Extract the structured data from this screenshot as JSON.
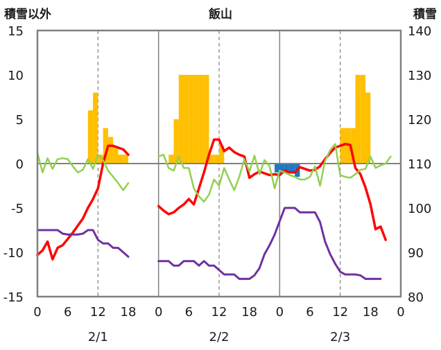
{
  "chart_data": {
    "type": "bar+line",
    "title": "飯山",
    "y_left_label": "積雪以外",
    "y_right_label": "積雪",
    "y_left_ticks": [
      "15",
      "10",
      "5",
      "0",
      "-5",
      "-10",
      "-15"
    ],
    "y_right_ticks": [
      "140",
      "130",
      "120",
      "110",
      "100",
      "90",
      "80"
    ],
    "ylim_left": [
      -15,
      15
    ],
    "ylim_right": [
      80,
      140
    ],
    "x_tick_labels": [
      "0",
      "6",
      "12",
      "18",
      "0",
      "6",
      "12",
      "18",
      "0",
      "6",
      "12",
      "18",
      "0"
    ],
    "day_labels": [
      "2/1",
      "2/2",
      "2/3"
    ],
    "x_unit": "hours from 2/1 00:00",
    "xlim": [
      0,
      72
    ],
    "grid": "dashed vertical at 12:00 each day; solid day separators",
    "colors": {
      "snowfall_positive": "#ffc000",
      "snowfall_negative": "#1f77c4",
      "red": "#ff0000",
      "green": "#92d050",
      "purple": "#7030a0",
      "frame": "#808080"
    },
    "bars": {
      "name": "",
      "axis": "left",
      "points": [
        {
          "x": 10.5,
          "y": 6
        },
        {
          "x": 11.5,
          "y": 8
        },
        {
          "x": 12.5,
          "y": 1
        },
        {
          "x": 13.5,
          "y": 4
        },
        {
          "x": 14.5,
          "y": 3
        },
        {
          "x": 15.5,
          "y": 2
        },
        {
          "x": 16.5,
          "y": 1
        },
        {
          "x": 17.5,
          "y": 1
        },
        {
          "x": 26.5,
          "y": 1
        },
        {
          "x": 27.5,
          "y": 5
        },
        {
          "x": 28.5,
          "y": 10
        },
        {
          "x": 29.5,
          "y": 10
        },
        {
          "x": 30.5,
          "y": 10
        },
        {
          "x": 31.5,
          "y": 10
        },
        {
          "x": 32.5,
          "y": 10
        },
        {
          "x": 33.5,
          "y": 10
        },
        {
          "x": 34.5,
          "y": 1
        },
        {
          "x": 35.5,
          "y": 1
        },
        {
          "x": 36.5,
          "y": 2
        },
        {
          "x": 47.5,
          "y": -1
        },
        {
          "x": 48.5,
          "y": -1
        },
        {
          "x": 49.5,
          "y": -1
        },
        {
          "x": 50.5,
          "y": -1
        },
        {
          "x": 51.5,
          "y": -1.5
        },
        {
          "x": 60.5,
          "y": 4
        },
        {
          "x": 61.5,
          "y": 4
        },
        {
          "x": 62.5,
          "y": 4
        },
        {
          "x": 63.5,
          "y": 10
        },
        {
          "x": 64.5,
          "y": 10
        },
        {
          "x": 65.5,
          "y": 8
        }
      ]
    },
    "series": [
      {
        "name": "",
        "axis": "left",
        "color": "red",
        "segments": [
          [
            [
              0,
              -10.3
            ],
            [
              1,
              -9.8
            ],
            [
              2,
              -8.8
            ],
            [
              3,
              -10.8
            ],
            [
              4,
              -9.5
            ],
            [
              5,
              -9.2
            ],
            [
              6,
              -8.5
            ],
            [
              7,
              -7.8
            ],
            [
              8,
              -7
            ],
            [
              9,
              -6.2
            ],
            [
              10,
              -5
            ],
            [
              11,
              -4
            ],
            [
              12,
              -2.8
            ],
            [
              13,
              0
            ],
            [
              14,
              2
            ],
            [
              15,
              2
            ],
            [
              16,
              1.8
            ],
            [
              17,
              1.6
            ],
            [
              18,
              1
            ]
          ],
          [
            [
              24,
              -4.8
            ],
            [
              25,
              -5.3
            ],
            [
              26,
              -5.7
            ],
            [
              27,
              -5.5
            ],
            [
              28,
              -5
            ],
            [
              29,
              -4.6
            ],
            [
              30,
              -4
            ],
            [
              31,
              -4.6
            ],
            [
              32,
              -2.8
            ],
            [
              33,
              -1
            ],
            [
              34,
              1
            ],
            [
              35,
              2.7
            ],
            [
              36,
              2.7
            ],
            [
              37,
              1.4
            ],
            [
              38,
              1.8
            ],
            [
              39,
              1.3
            ],
            [
              40,
              1
            ],
            [
              41,
              0.8
            ],
            [
              42,
              -1.6
            ],
            [
              43,
              -1.2
            ],
            [
              44,
              -0.9
            ],
            [
              45,
              -1.1
            ],
            [
              46,
              -1.3
            ],
            [
              47,
              -1.2
            ],
            [
              48,
              -1.3
            ],
            [
              49,
              -0.8
            ],
            [
              50,
              -1
            ],
            [
              51,
              -1
            ],
            [
              52,
              -0.4
            ],
            [
              53,
              -0.6
            ],
            [
              54,
              -0.8
            ],
            [
              55,
              -0.7
            ],
            [
              56,
              -0.3
            ],
            [
              57,
              0.5
            ],
            [
              58,
              1.2
            ],
            [
              59,
              1.8
            ],
            [
              60,
              2
            ],
            [
              61,
              2.2
            ],
            [
              62,
              2.1
            ],
            [
              63,
              -0.5
            ],
            [
              64,
              -1.2
            ],
            [
              65,
              -2.7
            ],
            [
              66,
              -4.6
            ],
            [
              67,
              -7.4
            ],
            [
              68,
              -7.1
            ],
            [
              69,
              -8.6
            ]
          ]
        ]
      },
      {
        "name": "",
        "axis": "left",
        "color": "green",
        "segments": [
          [
            [
              0,
              1.2
            ],
            [
              1,
              -1
            ],
            [
              2,
              0.6
            ],
            [
              3,
              -0.6
            ],
            [
              4,
              0.5
            ],
            [
              5,
              0.6
            ],
            [
              6,
              0.5
            ],
            [
              7,
              -0.3
            ],
            [
              8,
              -1
            ],
            [
              9,
              -0.7
            ],
            [
              10,
              0.5
            ],
            [
              11,
              -0.6
            ],
            [
              12,
              1
            ],
            [
              13,
              0.4
            ],
            [
              14,
              -0.8
            ],
            [
              15,
              -1.5
            ],
            [
              16,
              -2.2
            ],
            [
              17,
              -3
            ],
            [
              18,
              -2.2
            ]
          ],
          [
            [
              24,
              0.8
            ],
            [
              25,
              1
            ],
            [
              26,
              -0.5
            ],
            [
              27,
              -0.8
            ],
            [
              28,
              0.8
            ],
            [
              29,
              -0.5
            ],
            [
              30,
              -0.5
            ],
            [
              31,
              -2.8
            ],
            [
              32,
              -3.7
            ],
            [
              33,
              -4.3
            ],
            [
              34,
              -3.5
            ],
            [
              35,
              -1.8
            ],
            [
              36,
              -2.5
            ],
            [
              37,
              -0.5
            ],
            [
              38,
              -1.8
            ],
            [
              39,
              -3
            ],
            [
              40,
              -1.5
            ],
            [
              41,
              0.5
            ],
            [
              42,
              -0.9
            ],
            [
              43,
              0.9
            ],
            [
              44,
              -1.2
            ],
            [
              45,
              0.4
            ],
            [
              46,
              -0.3
            ],
            [
              47,
              -2.8
            ],
            [
              48,
              -0.8
            ],
            [
              49,
              -1
            ],
            [
              50,
              -1.3
            ],
            [
              51,
              -1.5
            ],
            [
              52,
              -1.8
            ],
            [
              53,
              -1.8
            ],
            [
              54,
              -1.5
            ],
            [
              55,
              -0.3
            ],
            [
              56,
              -2.5
            ],
            [
              57,
              0.3
            ],
            [
              58,
              1.5
            ],
            [
              59,
              2.2
            ],
            [
              60,
              -1.3
            ],
            [
              61,
              -1.5
            ],
            [
              62,
              -1.6
            ],
            [
              63,
              -1.2
            ],
            [
              64,
              -0.7
            ],
            [
              65,
              -0.6
            ],
            [
              66,
              0.8
            ],
            [
              67,
              -0.5
            ],
            [
              68,
              -0.2
            ],
            [
              69,
              0
            ],
            [
              70,
              0.8
            ]
          ]
        ]
      },
      {
        "name": "",
        "axis": "left",
        "color": "purple",
        "segments": [
          [
            [
              0,
              -7.5
            ],
            [
              2,
              -7.5
            ],
            [
              4,
              -7.5
            ],
            [
              5,
              -7.9
            ],
            [
              6,
              -8
            ],
            [
              8,
              -8
            ],
            [
              9,
              -7.9
            ],
            [
              10,
              -7.5
            ],
            [
              11,
              -7.5
            ],
            [
              12,
              -8.6
            ],
            [
              13,
              -9
            ],
            [
              14,
              -9
            ],
            [
              15,
              -9.5
            ],
            [
              16,
              -9.5
            ],
            [
              17,
              -10
            ],
            [
              18,
              -10.5
            ]
          ],
          [
            [
              24,
              -11
            ],
            [
              26,
              -11
            ],
            [
              27,
              -11.5
            ],
            [
              28,
              -11.5
            ],
            [
              29,
              -11
            ],
            [
              31,
              -11
            ],
            [
              32,
              -11.5
            ],
            [
              33,
              -11
            ],
            [
              34,
              -11.5
            ],
            [
              35,
              -11.5
            ],
            [
              36,
              -12
            ],
            [
              37,
              -12.5
            ],
            [
              38,
              -12.5
            ],
            [
              39,
              -12.5
            ],
            [
              40,
              -13
            ],
            [
              42,
              -13
            ],
            [
              43,
              -12.6
            ],
            [
              44,
              -11.8
            ],
            [
              45,
              -10.2
            ],
            [
              46,
              -9.2
            ],
            [
              47,
              -8
            ],
            [
              48,
              -6.5
            ],
            [
              49,
              -5
            ],
            [
              50,
              -5
            ],
            [
              51,
              -5
            ],
            [
              52,
              -5.5
            ],
            [
              53,
              -5.5
            ],
            [
              54,
              -5.5
            ],
            [
              55,
              -5.5
            ],
            [
              56,
              -6.6
            ],
            [
              57,
              -8.8
            ],
            [
              58,
              -10.2
            ],
            [
              59,
              -11.3
            ],
            [
              60,
              -12.2
            ],
            [
              61,
              -12.5
            ],
            [
              63,
              -12.5
            ],
            [
              64,
              -12.6
            ],
            [
              65,
              -13
            ],
            [
              68,
              -13
            ]
          ]
        ]
      }
    ]
  }
}
